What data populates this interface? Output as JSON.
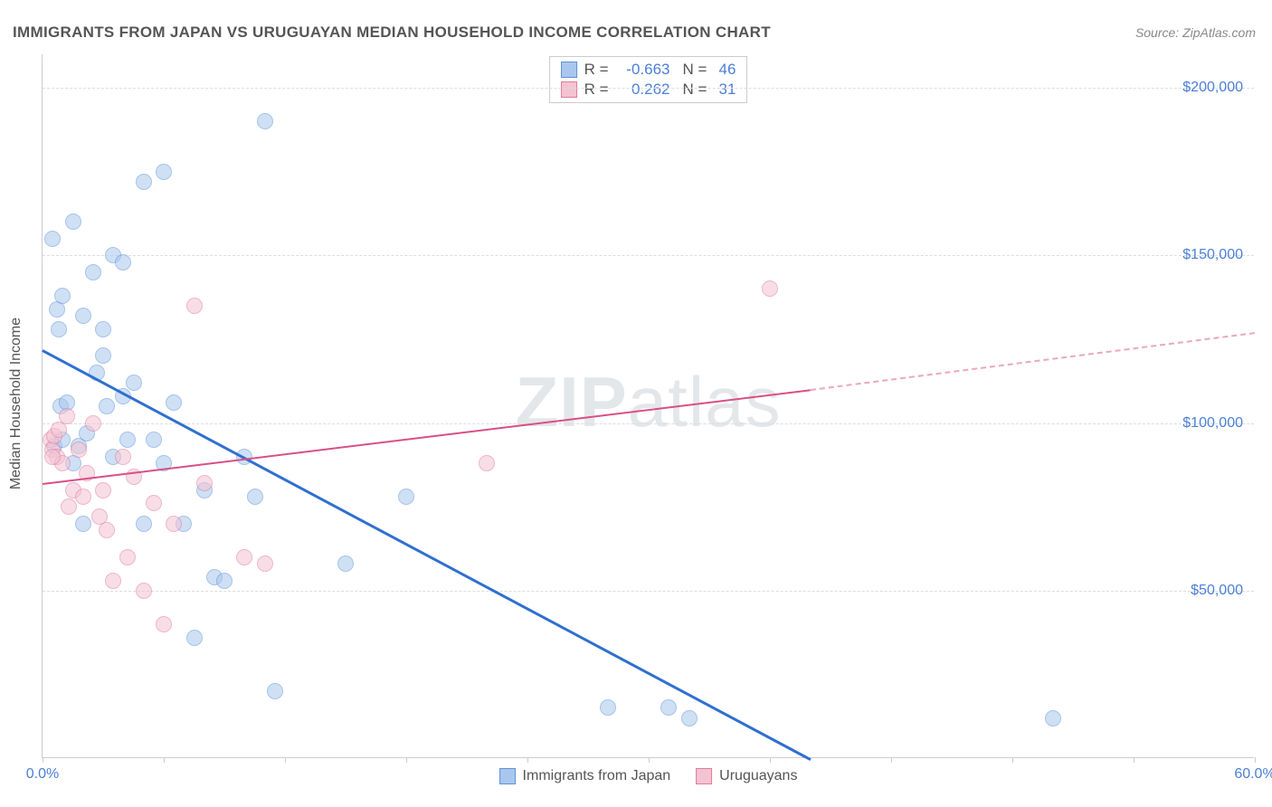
{
  "title": "IMMIGRANTS FROM JAPAN VS URUGUAYAN MEDIAN HOUSEHOLD INCOME CORRELATION CHART",
  "source_label": "Source:",
  "source_value": "ZipAtlas.com",
  "ylabel": "Median Household Income",
  "watermark_bold": "ZIP",
  "watermark_rest": "atlas",
  "chart": {
    "type": "scatter",
    "background_color": "#ffffff",
    "grid_color": "#dddddd",
    "axis_color": "#cccccc",
    "xlim": [
      0,
      60
    ],
    "ylim": [
      0,
      210000
    ],
    "xtick_positions": [
      0,
      6,
      12,
      18,
      24,
      30,
      36,
      42,
      48,
      54,
      60
    ],
    "xtick_labels_shown": {
      "0": "0.0%",
      "60": "60.0%"
    },
    "ytick_positions": [
      50000,
      100000,
      150000,
      200000
    ],
    "ytick_labels": [
      "$50,000",
      "$100,000",
      "$150,000",
      "$200,000"
    ],
    "tick_label_color": "#4a7fd8",
    "tick_label_fontsize": 16,
    "title_color": "#555555",
    "title_fontsize": 17,
    "series": [
      {
        "name": "Immigrants from Japan",
        "fill_color": "#a9c7ee",
        "stroke_color": "#5f93d7",
        "fill_opacity": 0.55,
        "marker_radius": 9,
        "R": "-0.663",
        "N": "46",
        "trend": {
          "x1": 0,
          "y1": 122000,
          "x2": 38,
          "y2": 0,
          "color": "#2f6fd0",
          "width": 2.5
        },
        "points": [
          [
            0.5,
            155000
          ],
          [
            0.6,
            93000
          ],
          [
            0.7,
            134000
          ],
          [
            0.8,
            128000
          ],
          [
            0.9,
            105000
          ],
          [
            1.0,
            95000
          ],
          [
            1.0,
            138000
          ],
          [
            1.2,
            106000
          ],
          [
            1.5,
            160000
          ],
          [
            1.5,
            88000
          ],
          [
            1.8,
            93000
          ],
          [
            2.0,
            132000
          ],
          [
            2.0,
            70000
          ],
          [
            2.2,
            97000
          ],
          [
            2.5,
            145000
          ],
          [
            2.7,
            115000
          ],
          [
            3.0,
            128000
          ],
          [
            3.0,
            120000
          ],
          [
            3.2,
            105000
          ],
          [
            3.5,
            150000
          ],
          [
            3.5,
            90000
          ],
          [
            4.0,
            108000
          ],
          [
            4.0,
            148000
          ],
          [
            4.2,
            95000
          ],
          [
            4.5,
            112000
          ],
          [
            5.0,
            172000
          ],
          [
            5.0,
            70000
          ],
          [
            5.5,
            95000
          ],
          [
            6.0,
            88000
          ],
          [
            6.5,
            106000
          ],
          [
            7.0,
            70000
          ],
          [
            7.5,
            36000
          ],
          [
            8.0,
            80000
          ],
          [
            8.5,
            54000
          ],
          [
            9.0,
            53000
          ],
          [
            10.0,
            90000
          ],
          [
            10.5,
            78000
          ],
          [
            11.0,
            190000
          ],
          [
            11.5,
            20000
          ],
          [
            15.0,
            58000
          ],
          [
            18.0,
            78000
          ],
          [
            28.0,
            15000
          ],
          [
            31.0,
            15000
          ],
          [
            32.0,
            12000
          ],
          [
            50.0,
            12000
          ],
          [
            6.0,
            175000
          ]
        ]
      },
      {
        "name": "Uruguayans",
        "fill_color": "#f4c3d2",
        "stroke_color": "#e27aa0",
        "fill_opacity": 0.55,
        "marker_radius": 9,
        "R": "0.262",
        "N": "31",
        "trend_solid": {
          "x1": 0,
          "y1": 82000,
          "x2": 38,
          "y2": 110000,
          "color": "#d94f85",
          "width": 2
        },
        "trend_dashed": {
          "x1": 38,
          "y1": 110000,
          "x2": 60,
          "y2": 127000,
          "color": "#eaa8bf",
          "width": 2
        },
        "points": [
          [
            0.4,
            95000
          ],
          [
            0.5,
            92000
          ],
          [
            0.6,
            96000
          ],
          [
            0.7,
            90000
          ],
          [
            0.8,
            98000
          ],
          [
            1.0,
            88000
          ],
          [
            1.2,
            102000
          ],
          [
            1.3,
            75000
          ],
          [
            1.5,
            80000
          ],
          [
            1.8,
            92000
          ],
          [
            2.0,
            78000
          ],
          [
            2.2,
            85000
          ],
          [
            2.5,
            100000
          ],
          [
            2.8,
            72000
          ],
          [
            3.0,
            80000
          ],
          [
            3.2,
            68000
          ],
          [
            3.5,
            53000
          ],
          [
            4.0,
            90000
          ],
          [
            4.2,
            60000
          ],
          [
            4.5,
            84000
          ],
          [
            5.0,
            50000
          ],
          [
            5.5,
            76000
          ],
          [
            6.0,
            40000
          ],
          [
            6.5,
            70000
          ],
          [
            7.5,
            135000
          ],
          [
            8.0,
            82000
          ],
          [
            10.0,
            60000
          ],
          [
            11.0,
            58000
          ],
          [
            22.0,
            88000
          ],
          [
            36.0,
            140000
          ],
          [
            0.5,
            90000
          ]
        ]
      }
    ],
    "bottom_legend": [
      {
        "label": "Immigrants from Japan",
        "fill": "#a9c7ee",
        "stroke": "#5f93d7"
      },
      {
        "label": "Uruguayans",
        "fill": "#f4c3d2",
        "stroke": "#e27aa0"
      }
    ]
  }
}
